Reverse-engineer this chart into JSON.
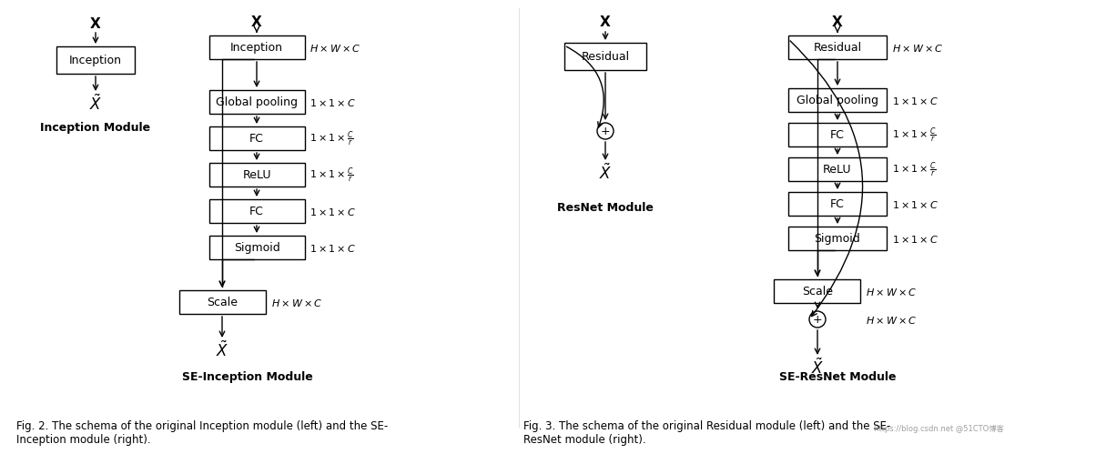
{
  "bg_color": "#ffffff",
  "fig_caption_left": "Fig. 2. The schema of the original Inception module (left) and the SE-\nInception module (right).",
  "fig_caption_right": "Fig. 3. The schema of the original Residual module (left) and the SE-\nResNet module (right).",
  "watermark": "https://blog.csdn.net @51CTO博客"
}
